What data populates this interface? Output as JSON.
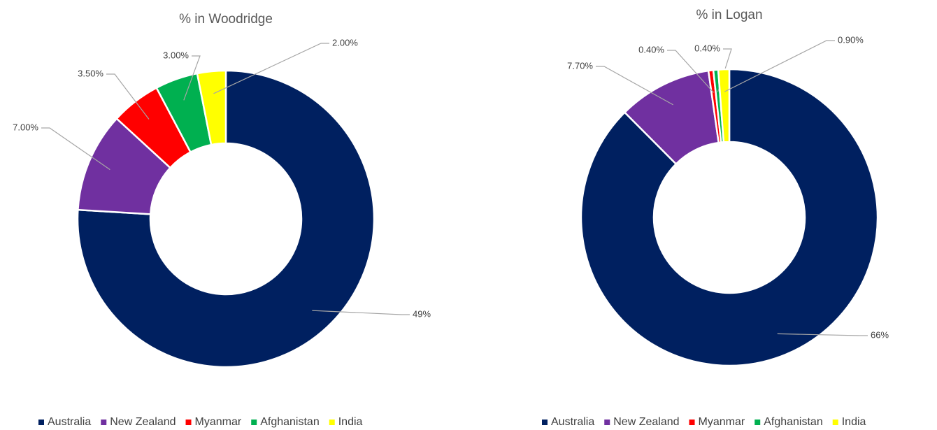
{
  "chart_data": [
    {
      "type": "donut",
      "title": "% in Woodridge",
      "categories": [
        "Australia",
        "New Zealand",
        "Myanmar",
        "Afghanistan",
        "India"
      ],
      "values": [
        49,
        7,
        3.5,
        3,
        2
      ],
      "value_labels": [
        "49%",
        "7.00%",
        "3.50%",
        "3.00%",
        "2.00%"
      ],
      "colors": [
        "#002060",
        "#7030a0",
        "#ff0000",
        "#00b050",
        "#ffff00"
      ]
    },
    {
      "type": "donut",
      "title": "% in Logan",
      "categories": [
        "Australia",
        "New Zealand",
        "Myanmar",
        "Afghanistan",
        "India"
      ],
      "values": [
        66,
        7.7,
        0.4,
        0.4,
        0.9
      ],
      "value_labels": [
        "66%",
        "7.70%",
        "0.40%",
        "0.40%",
        "0.90%"
      ],
      "colors": [
        "#002060",
        "#7030a0",
        "#ff0000",
        "#00b050",
        "#ffff00"
      ]
    }
  ]
}
